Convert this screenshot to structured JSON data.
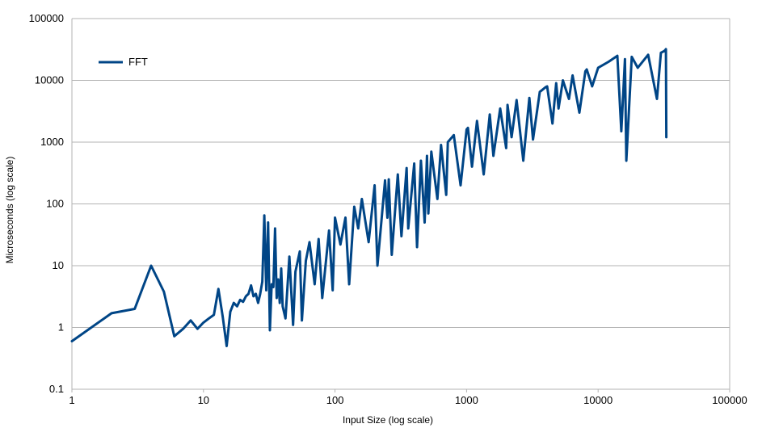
{
  "chart_data": {
    "type": "line",
    "title": "",
    "xlabel": "Input Size (log scale)",
    "ylabel": "Microseconds (log scale)",
    "x_scale": "log",
    "y_scale": "log",
    "xlim": [
      1,
      100000
    ],
    "ylim": [
      0.1,
      100000
    ],
    "x_ticks": [
      "1",
      "10",
      "100",
      "1000",
      "10000",
      "100000"
    ],
    "y_ticks": [
      "0.1",
      "1",
      "10",
      "100",
      "1000",
      "10000",
      "100000"
    ],
    "grid": "horizontal",
    "legend": "top-left",
    "series": [
      {
        "name": "FFT",
        "color": "#004586",
        "x": [
          1,
          2,
          3,
          4,
          5,
          6,
          7,
          8,
          9,
          10,
          11,
          12,
          13,
          14,
          15,
          16,
          17,
          18,
          19,
          20,
          21,
          22,
          23,
          24,
          25,
          26,
          27,
          28,
          29,
          30,
          31,
          32,
          33,
          34,
          35,
          36,
          37,
          38,
          39,
          40,
          42,
          45,
          48,
          50,
          54,
          56,
          60,
          64,
          70,
          75,
          80,
          90,
          96,
          100,
          110,
          120,
          128,
          140,
          150,
          160,
          180,
          200,
          210,
          240,
          250,
          256,
          270,
          300,
          320,
          350,
          360,
          400,
          420,
          450,
          480,
          500,
          512,
          540,
          600,
          640,
          700,
          720,
          800,
          900,
          1000,
          1024,
          1100,
          1200,
          1350,
          1500,
          1600,
          1800,
          2000,
          2048,
          2200,
          2400,
          2700,
          3000,
          3200,
          3600,
          4000,
          4096,
          4500,
          4800,
          5000,
          5400,
          6000,
          6400,
          7200,
          8000,
          8192,
          9000,
          10000,
          12000,
          14000,
          15000,
          16000,
          16384,
          18000,
          20000,
          24000,
          28000,
          30000,
          32000,
          32768,
          33000
        ],
        "y": [
          0.6,
          1.7,
          2.0,
          10.0,
          3.8,
          0.72,
          0.95,
          1.3,
          0.95,
          1.2,
          1.4,
          1.6,
          4.2,
          1.5,
          0.5,
          1.8,
          2.5,
          2.2,
          2.8,
          2.6,
          3.2,
          3.5,
          4.8,
          3.2,
          3.5,
          2.5,
          3.5,
          5.5,
          65.0,
          4.0,
          50.0,
          0.9,
          5.0,
          4.5,
          40.0,
          3.0,
          6.0,
          2.5,
          9.0,
          2.2,
          1.4,
          14.0,
          1.1,
          8.0,
          17.0,
          1.3,
          12.0,
          24.0,
          5.0,
          27.0,
          3.0,
          37.0,
          4.0,
          60.0,
          22.0,
          60.0,
          5.0,
          90.0,
          40.0,
          120.0,
          24.0,
          200.0,
          10.0,
          240.0,
          60.0,
          250.0,
          15.0,
          300.0,
          30.0,
          380.0,
          40.0,
          450.0,
          20.0,
          500.0,
          50.0,
          600.0,
          70.0,
          700.0,
          120.0,
          900.0,
          140.0,
          1000.0,
          1300.0,
          200.0,
          1600.0,
          1700.0,
          400.0,
          2200.0,
          300.0,
          2800.0,
          600.0,
          3500.0,
          800.0,
          4000.0,
          1200.0,
          4800.0,
          500.0,
          5200.0,
          1100.0,
          6500.0,
          7800.0,
          8000.0,
          2000.0,
          9000.0,
          3500.0,
          10000.0,
          5000.0,
          12000.0,
          3000.0,
          14000.0,
          15000.0,
          8000.0,
          16000.0,
          20000.0,
          25000.0,
          1500.0,
          22000.0,
          500.0,
          24000.0,
          16000.0,
          26000.0,
          5000.0,
          28000.0,
          30000.0,
          32000.0,
          1200.0
        ]
      }
    ]
  }
}
